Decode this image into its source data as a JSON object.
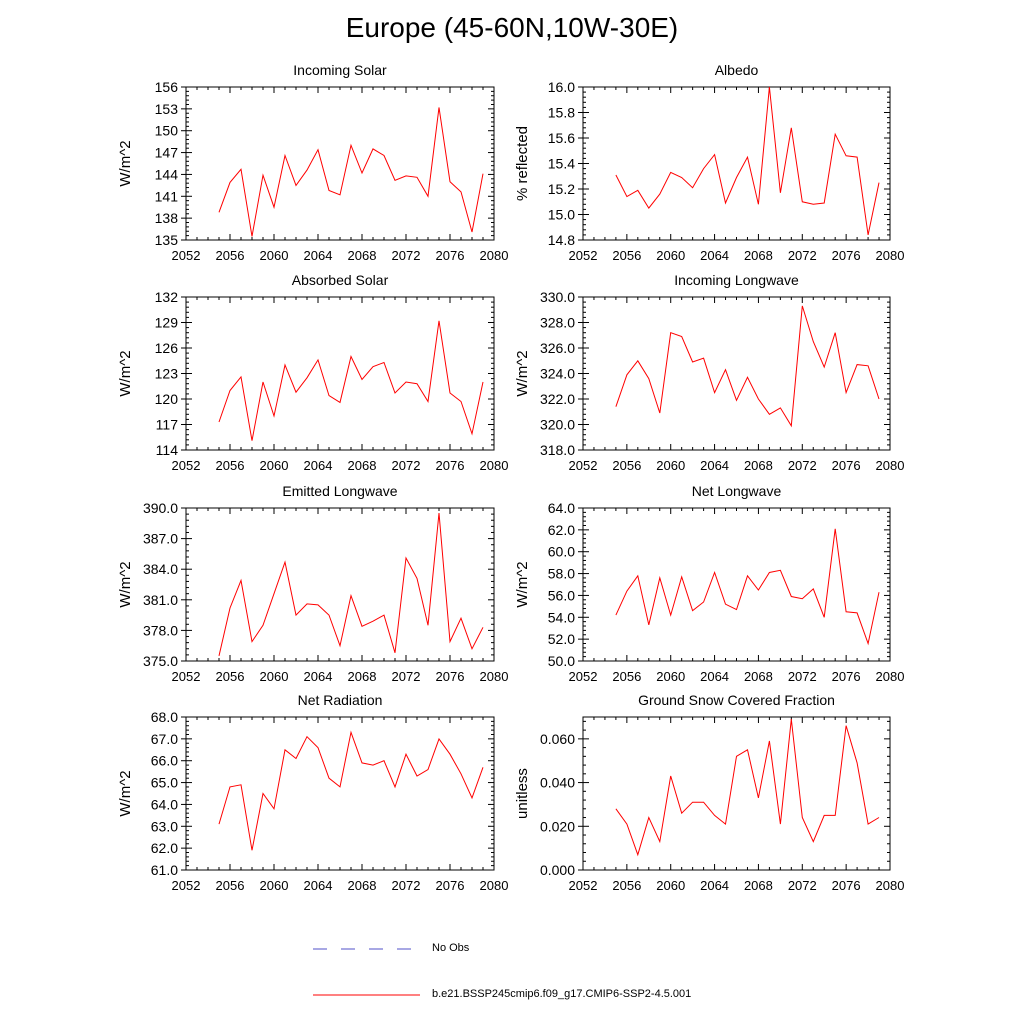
{
  "figure": {
    "title": "Europe (45-60N,10W-30E)"
  },
  "legend": {
    "items": [
      {
        "label": "No Obs",
        "color": "#5050c8",
        "style": "dashed"
      },
      {
        "label": "b.e21.BSSP245cmip6.f09_g17.CMIP6-SSP2-4.5.001",
        "color": "#ff0000",
        "style": "solid"
      }
    ]
  },
  "chart_data": [
    {
      "type": "line",
      "title": "Incoming Solar",
      "ylabel": "W/m^2",
      "xlim": [
        2052,
        2080
      ],
      "ylim": [
        135,
        156
      ],
      "xticks": [
        2052,
        2056,
        2060,
        2064,
        2068,
        2072,
        2076,
        2080
      ],
      "yticks": [
        "135",
        "138",
        "141",
        "144",
        "147",
        "150",
        "153",
        "156"
      ],
      "series": [
        {
          "color": "#ff0000",
          "x": [
            2055,
            2056,
            2057,
            2058,
            2059,
            2060,
            2061,
            2062,
            2063,
            2064,
            2065,
            2066,
            2067,
            2068,
            2069,
            2070,
            2071,
            2072,
            2073,
            2074,
            2075,
            2076,
            2077,
            2078,
            2079
          ],
          "values": [
            138.8,
            142.9,
            144.7,
            135.5,
            143.9,
            139.5,
            146.6,
            142.5,
            144.6,
            147.4,
            141.8,
            141.2,
            148.0,
            144.2,
            147.5,
            146.6,
            143.2,
            143.8,
            143.6,
            141.0,
            153.2,
            143.0,
            141.6,
            136.1,
            144.1
          ]
        }
      ]
    },
    {
      "type": "line",
      "title": "Albedo",
      "ylabel": "% reflected",
      "xlim": [
        2052,
        2080
      ],
      "ylim": [
        14.8,
        16.0
      ],
      "xticks": [
        2052,
        2056,
        2060,
        2064,
        2068,
        2072,
        2076,
        2080
      ],
      "yticks": [
        "14.8",
        "15.0",
        "15.2",
        "15.4",
        "15.6",
        "15.8",
        "16.0"
      ],
      "series": [
        {
          "color": "#ff0000",
          "x": [
            2055,
            2056,
            2057,
            2058,
            2059,
            2060,
            2061,
            2062,
            2063,
            2064,
            2065,
            2066,
            2067,
            2068,
            2069,
            2070,
            2071,
            2072,
            2073,
            2074,
            2075,
            2076,
            2077,
            2078,
            2079
          ],
          "values": [
            15.31,
            15.14,
            15.19,
            15.05,
            15.16,
            15.33,
            15.29,
            15.21,
            15.36,
            15.47,
            15.09,
            15.29,
            15.45,
            15.08,
            16.0,
            15.17,
            15.68,
            15.1,
            15.08,
            15.09,
            15.63,
            15.46,
            15.45,
            14.84,
            15.25
          ]
        }
      ]
    },
    {
      "type": "line",
      "title": "Absorbed Solar",
      "ylabel": "W/m^2",
      "xlim": [
        2052,
        2080
      ],
      "ylim": [
        114,
        132
      ],
      "xticks": [
        2052,
        2056,
        2060,
        2064,
        2068,
        2072,
        2076,
        2080
      ],
      "yticks": [
        "114",
        "117",
        "120",
        "123",
        "126",
        "129",
        "132"
      ],
      "series": [
        {
          "color": "#ff0000",
          "x": [
            2055,
            2056,
            2057,
            2058,
            2059,
            2060,
            2061,
            2062,
            2063,
            2064,
            2065,
            2066,
            2067,
            2068,
            2069,
            2070,
            2071,
            2072,
            2073,
            2074,
            2075,
            2076,
            2077,
            2078,
            2079
          ],
          "values": [
            117.3,
            121.0,
            122.6,
            115.1,
            122.0,
            118.0,
            124.0,
            120.8,
            122.5,
            124.6,
            120.4,
            119.6,
            125.0,
            122.3,
            123.8,
            124.3,
            120.7,
            122.0,
            121.8,
            119.7,
            129.2,
            120.7,
            119.7,
            115.9,
            122.0
          ]
        }
      ]
    },
    {
      "type": "line",
      "title": "Incoming Longwave",
      "ylabel": "W/m^2",
      "xlim": [
        2052,
        2080
      ],
      "ylim": [
        318.0,
        330.0
      ],
      "xticks": [
        2052,
        2056,
        2060,
        2064,
        2068,
        2072,
        2076,
        2080
      ],
      "yticks": [
        "318.0",
        "320.0",
        "322.0",
        "324.0",
        "326.0",
        "328.0",
        "330.0"
      ],
      "series": [
        {
          "color": "#ff0000",
          "x": [
            2055,
            2056,
            2057,
            2058,
            2059,
            2060,
            2061,
            2062,
            2063,
            2064,
            2065,
            2066,
            2067,
            2068,
            2069,
            2070,
            2071,
            2072,
            2073,
            2074,
            2075,
            2076,
            2077,
            2078,
            2079
          ],
          "values": [
            321.4,
            323.9,
            325.0,
            323.6,
            320.9,
            327.2,
            326.9,
            324.9,
            325.2,
            322.5,
            324.3,
            321.9,
            323.7,
            322.0,
            320.8,
            321.3,
            319.9,
            329.3,
            326.5,
            324.5,
            327.2,
            322.5,
            324.7,
            324.6,
            322.0
          ]
        }
      ]
    },
    {
      "type": "line",
      "title": "Emitted Longwave",
      "ylabel": "W/m^2",
      "xlim": [
        2052,
        2080
      ],
      "ylim": [
        375.0,
        390.0
      ],
      "xticks": [
        2052,
        2056,
        2060,
        2064,
        2068,
        2072,
        2076,
        2080
      ],
      "yticks": [
        "375.0",
        "378.0",
        "381.0",
        "384.0",
        "387.0",
        "390.0"
      ],
      "series": [
        {
          "color": "#ff0000",
          "x": [
            2055,
            2056,
            2057,
            2058,
            2059,
            2060,
            2061,
            2062,
            2063,
            2064,
            2065,
            2066,
            2067,
            2068,
            2069,
            2070,
            2071,
            2072,
            2073,
            2074,
            2075,
            2076,
            2077,
            2078,
            2079
          ],
          "values": [
            375.5,
            380.2,
            382.9,
            376.9,
            378.5,
            381.6,
            384.7,
            379.5,
            380.6,
            380.5,
            379.5,
            376.5,
            381.4,
            378.4,
            378.9,
            379.5,
            375.8,
            385.1,
            383.1,
            378.5,
            389.5,
            376.9,
            379.2,
            376.2,
            378.3
          ]
        }
      ]
    },
    {
      "type": "line",
      "title": "Net Longwave",
      "ylabel": "W/m^2",
      "xlim": [
        2052,
        2080
      ],
      "ylim": [
        50.0,
        64.0
      ],
      "xticks": [
        2052,
        2056,
        2060,
        2064,
        2068,
        2072,
        2076,
        2080
      ],
      "yticks": [
        "50.0",
        "52.0",
        "54.0",
        "56.0",
        "58.0",
        "60.0",
        "62.0",
        "64.0"
      ],
      "series": [
        {
          "color": "#ff0000",
          "x": [
            2055,
            2056,
            2057,
            2058,
            2059,
            2060,
            2061,
            2062,
            2063,
            2064,
            2065,
            2066,
            2067,
            2068,
            2069,
            2070,
            2071,
            2072,
            2073,
            2074,
            2075,
            2076,
            2077,
            2078,
            2079
          ],
          "values": [
            54.2,
            56.4,
            57.8,
            53.3,
            57.6,
            54.2,
            57.7,
            54.6,
            55.4,
            58.1,
            55.2,
            54.7,
            57.8,
            56.5,
            58.1,
            58.3,
            55.9,
            55.7,
            56.6,
            54.0,
            62.1,
            54.5,
            54.4,
            51.6,
            56.3
          ]
        }
      ]
    },
    {
      "type": "line",
      "title": "Net Radiation",
      "ylabel": "W/m^2",
      "xlim": [
        2052,
        2080
      ],
      "ylim": [
        61.0,
        68.0
      ],
      "xticks": [
        2052,
        2056,
        2060,
        2064,
        2068,
        2072,
        2076,
        2080
      ],
      "yticks": [
        "61.0",
        "62.0",
        "63.0",
        "64.0",
        "65.0",
        "66.0",
        "67.0",
        "68.0"
      ],
      "series": [
        {
          "color": "#ff0000",
          "x": [
            2055,
            2056,
            2057,
            2058,
            2059,
            2060,
            2061,
            2062,
            2063,
            2064,
            2065,
            2066,
            2067,
            2068,
            2069,
            2070,
            2071,
            2072,
            2073,
            2074,
            2075,
            2076,
            2077,
            2078,
            2079
          ],
          "values": [
            63.1,
            64.8,
            64.9,
            61.9,
            64.5,
            63.8,
            66.5,
            66.1,
            67.1,
            66.6,
            65.2,
            64.8,
            67.3,
            65.9,
            65.8,
            66.0,
            64.8,
            66.3,
            65.3,
            65.6,
            67.0,
            66.3,
            65.4,
            64.3,
            65.7
          ]
        }
      ]
    },
    {
      "type": "line",
      "title": "Ground Snow Covered Fraction",
      "ylabel": "unitless",
      "xlim": [
        2052,
        2080
      ],
      "ylim": [
        0.0,
        0.07
      ],
      "xticks": [
        2052,
        2056,
        2060,
        2064,
        2068,
        2072,
        2076,
        2080
      ],
      "yticks": [
        "0.000",
        "0.020",
        "0.040",
        "0.060"
      ],
      "series": [
        {
          "color": "#ff0000",
          "x": [
            2055,
            2056,
            2057,
            2058,
            2059,
            2060,
            2061,
            2062,
            2063,
            2064,
            2065,
            2066,
            2067,
            2068,
            2069,
            2070,
            2071,
            2072,
            2073,
            2074,
            2075,
            2076,
            2077,
            2078,
            2079
          ],
          "values": [
            0.028,
            0.021,
            0.007,
            0.024,
            0.013,
            0.043,
            0.026,
            0.031,
            0.031,
            0.025,
            0.021,
            0.052,
            0.055,
            0.033,
            0.059,
            0.021,
            0.069,
            0.024,
            0.013,
            0.025,
            0.025,
            0.066,
            0.049,
            0.021,
            0.024
          ]
        }
      ]
    }
  ]
}
